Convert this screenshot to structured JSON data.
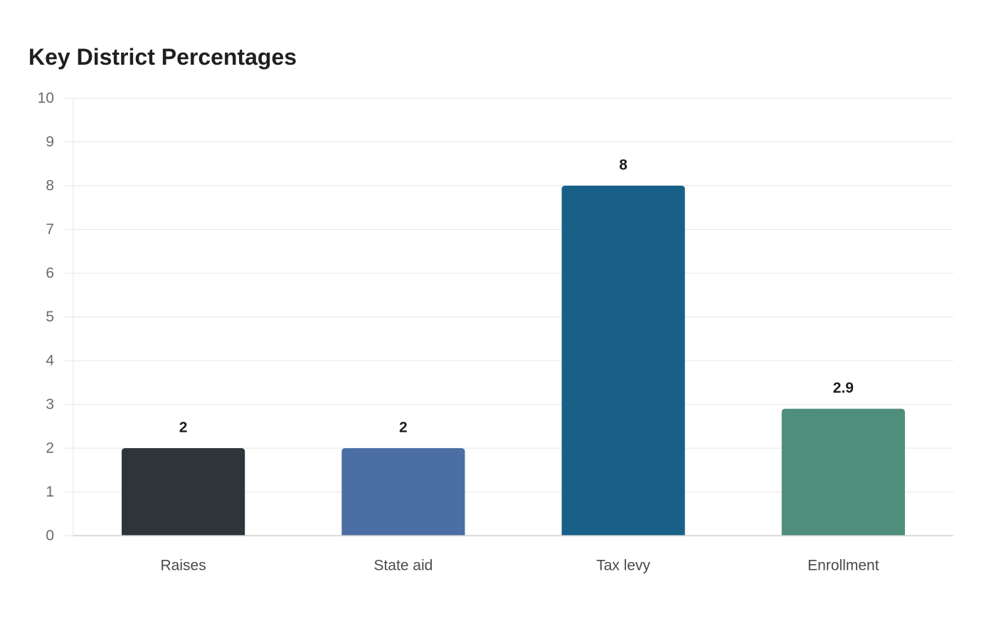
{
  "chart_data": {
    "type": "bar",
    "title": "Key District Percentages",
    "xlabel": "",
    "ylabel": "",
    "categories": [
      "Raises",
      "State aid",
      "Tax levy",
      "Enrollment"
    ],
    "values": [
      2,
      2,
      8,
      2.9
    ],
    "value_labels": [
      "2",
      "2",
      "8",
      "2.9"
    ],
    "ylim": [
      0,
      10
    ],
    "yticks": [
      "0",
      "1",
      "2",
      "3",
      "4",
      "5",
      "6",
      "7",
      "8",
      "9",
      "10"
    ],
    "colors": [
      "#2e3538",
      "#4b6fa4",
      "#186088",
      "#4f8e7b"
    ],
    "grid": true,
    "legend": "none"
  }
}
